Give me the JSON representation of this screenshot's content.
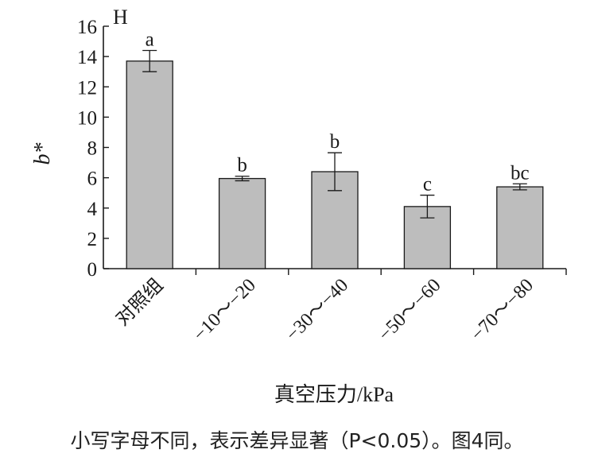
{
  "caption": "小写字母不同，表示差异显著（P<0.05）。图4同。",
  "chart_data": {
    "type": "bar",
    "panel_label": "H",
    "ylabel": "b*",
    "xlabel": "真空压力/kPa",
    "categories": [
      "对照组",
      "−10～−20",
      "−30～−40",
      "−50～−60",
      "−70～−80"
    ],
    "values": [
      13.7,
      5.95,
      6.4,
      4.1,
      5.4
    ],
    "errors": [
      0.7,
      0.15,
      1.25,
      0.75,
      0.2
    ],
    "significance_letters": [
      "a",
      "b",
      "b",
      "c",
      "bc"
    ],
    "ylim": [
      0,
      16
    ],
    "yticks": [
      0,
      2,
      4,
      6,
      8,
      10,
      12,
      14,
      16
    ],
    "grid": false,
    "bar_color": "#bdbdbd",
    "edge_color": "#1a1a1a"
  }
}
